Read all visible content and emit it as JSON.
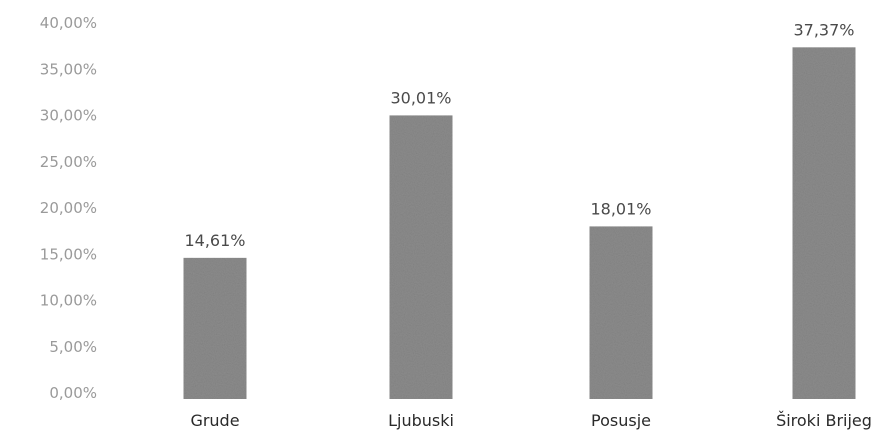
{
  "chart_data": {
    "type": "bar",
    "categories": [
      "Grude",
      "Ljubuski",
      "Posusje",
      "Široki Brijeg"
    ],
    "values": [
      14.61,
      30.01,
      18.01,
      37.37
    ],
    "data_labels": [
      "14,61%",
      "30,01%",
      "18,01%",
      "37,37%"
    ],
    "title": "",
    "xlabel": "",
    "ylabel": "",
    "ylim": [
      0,
      40
    ],
    "y_ticks": [
      "0,00%",
      "5,00%",
      "10,00%",
      "15,00%",
      "20,00%",
      "25,00%",
      "30,00%",
      "35,00%",
      "40,00%"
    ],
    "grid": false,
    "legend": "none",
    "bar_color": "#8c8c8c"
  }
}
